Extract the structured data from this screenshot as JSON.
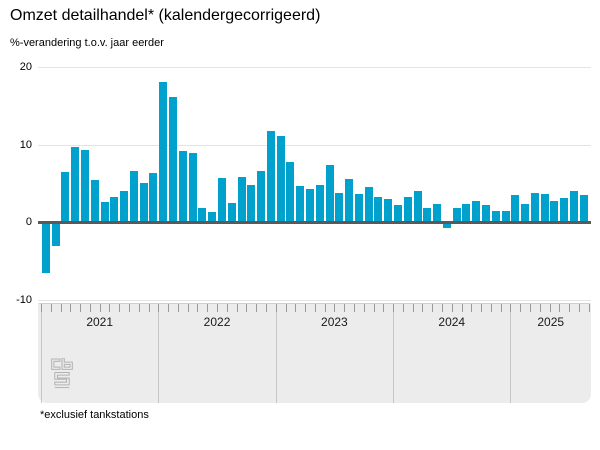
{
  "header": {
    "title": "Omzet detailhandel* (kalendergecorrigeerd)",
    "subtitle": "%-verandering t.o.v. jaar eerder"
  },
  "footnote": "*exclusief tankstations",
  "y_axis": {
    "tick_values": [
      20,
      10,
      0,
      -10
    ],
    "tick_labels": [
      "20",
      "10",
      "0",
      "-10"
    ]
  },
  "x_axis": {
    "year_labels": [
      "2021",
      "2022",
      "2023",
      "2024",
      "2025"
    ]
  },
  "colors": {
    "bar": "#00a1cd",
    "zero_line": "#58595b",
    "grid": "#e4e4e4",
    "selector_bg": "#ececec",
    "tick": "#9a9a9a",
    "logo_gray": "#b3b3b3"
  },
  "chart_data": {
    "type": "bar",
    "title": "Omzet detailhandel* (kalendergecorrigeerd)",
    "ylabel": "%-verandering t.o.v. jaar eerder",
    "ylim": [
      -10,
      20
    ],
    "grid": true,
    "legend": "none",
    "categories": [
      "2021-01",
      "2021-02",
      "2021-03",
      "2021-04",
      "2021-05",
      "2021-06",
      "2021-07",
      "2021-08",
      "2021-09",
      "2021-10",
      "2021-11",
      "2021-12",
      "2022-01",
      "2022-02",
      "2022-03",
      "2022-04",
      "2022-05",
      "2022-06",
      "2022-07",
      "2022-08",
      "2022-09",
      "2022-10",
      "2022-11",
      "2022-12",
      "2023-01",
      "2023-02",
      "2023-03",
      "2023-04",
      "2023-05",
      "2023-06",
      "2023-07",
      "2023-08",
      "2023-09",
      "2023-10",
      "2023-11",
      "2023-12",
      "2024-01",
      "2024-02",
      "2024-03",
      "2024-04",
      "2024-05",
      "2024-06",
      "2024-07",
      "2024-08",
      "2024-09",
      "2024-10",
      "2024-11",
      "2024-12",
      "2025-01",
      "2025-02",
      "2025-03",
      "2025-04",
      "2025-05",
      "2025-06",
      "2025-07",
      "2025-08"
    ],
    "values": [
      -6.5,
      -3.1,
      6.5,
      9.7,
      9.3,
      5.4,
      2.6,
      3.2,
      4.0,
      6.6,
      5.1,
      6.3,
      18.1,
      16.1,
      9.2,
      8.9,
      1.9,
      1.3,
      5.7,
      2.5,
      5.8,
      4.8,
      6.6,
      11.8,
      11.1,
      7.8,
      4.7,
      4.3,
      4.8,
      7.4,
      3.8,
      5.6,
      3.7,
      4.5,
      3.2,
      3.0,
      2.2,
      3.2,
      4.0,
      1.8,
      2.4,
      -0.7,
      1.9,
      2.4,
      2.7,
      2.2,
      1.5,
      1.5,
      3.5,
      2.3,
      3.8,
      3.7,
      2.7,
      3.1,
      4.0,
      3.5
    ]
  }
}
